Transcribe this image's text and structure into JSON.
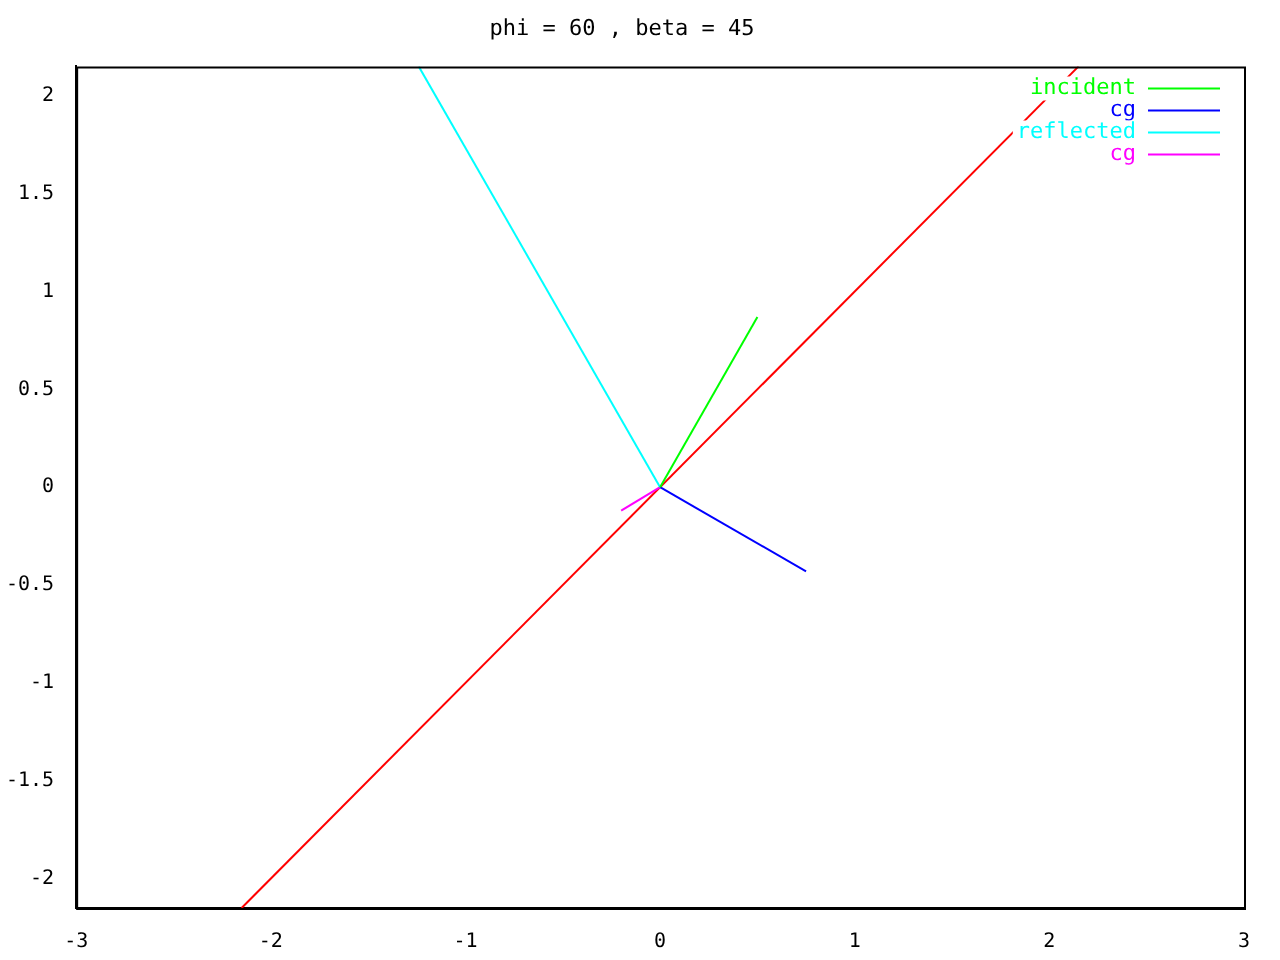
{
  "chart_data": {
    "type": "line",
    "title": "phi = 60 , beta = 45",
    "xlim": [
      -3,
      3
    ],
    "xticks": [
      -3,
      -2,
      -1,
      0,
      1,
      2,
      3
    ],
    "ylim": [
      -2.15,
      2.15
    ],
    "yticks": [
      -2,
      -1.5,
      -1,
      -0.5,
      0,
      0.5,
      1,
      1.5,
      2
    ],
    "grid": false,
    "legend": "top right",
    "marker": "none",
    "line_style": "solid",
    "series": [
      {
        "name": "incident",
        "color": "#00ff00",
        "x": [
          0,
          0.5
        ],
        "values": [
          0,
          0.87
        ]
      },
      {
        "name": "cg",
        "color": "#0000ff",
        "x": [
          0,
          0.75
        ],
        "values": [
          0,
          -0.43
        ]
      },
      {
        "name": "reflected",
        "color": "#00ffff",
        "x": [
          0,
          -1.24
        ],
        "values": [
          0,
          2.15
        ]
      },
      {
        "name": "cg",
        "color": "#ff00ff",
        "x": [
          -0.2,
          0
        ],
        "values": [
          -0.12,
          0
        ]
      },
      {
        "color": "#ff0000",
        "x": [
          -2.15,
          2.15
        ],
        "values": [
          -2.15,
          2.15
        ]
      }
    ]
  }
}
